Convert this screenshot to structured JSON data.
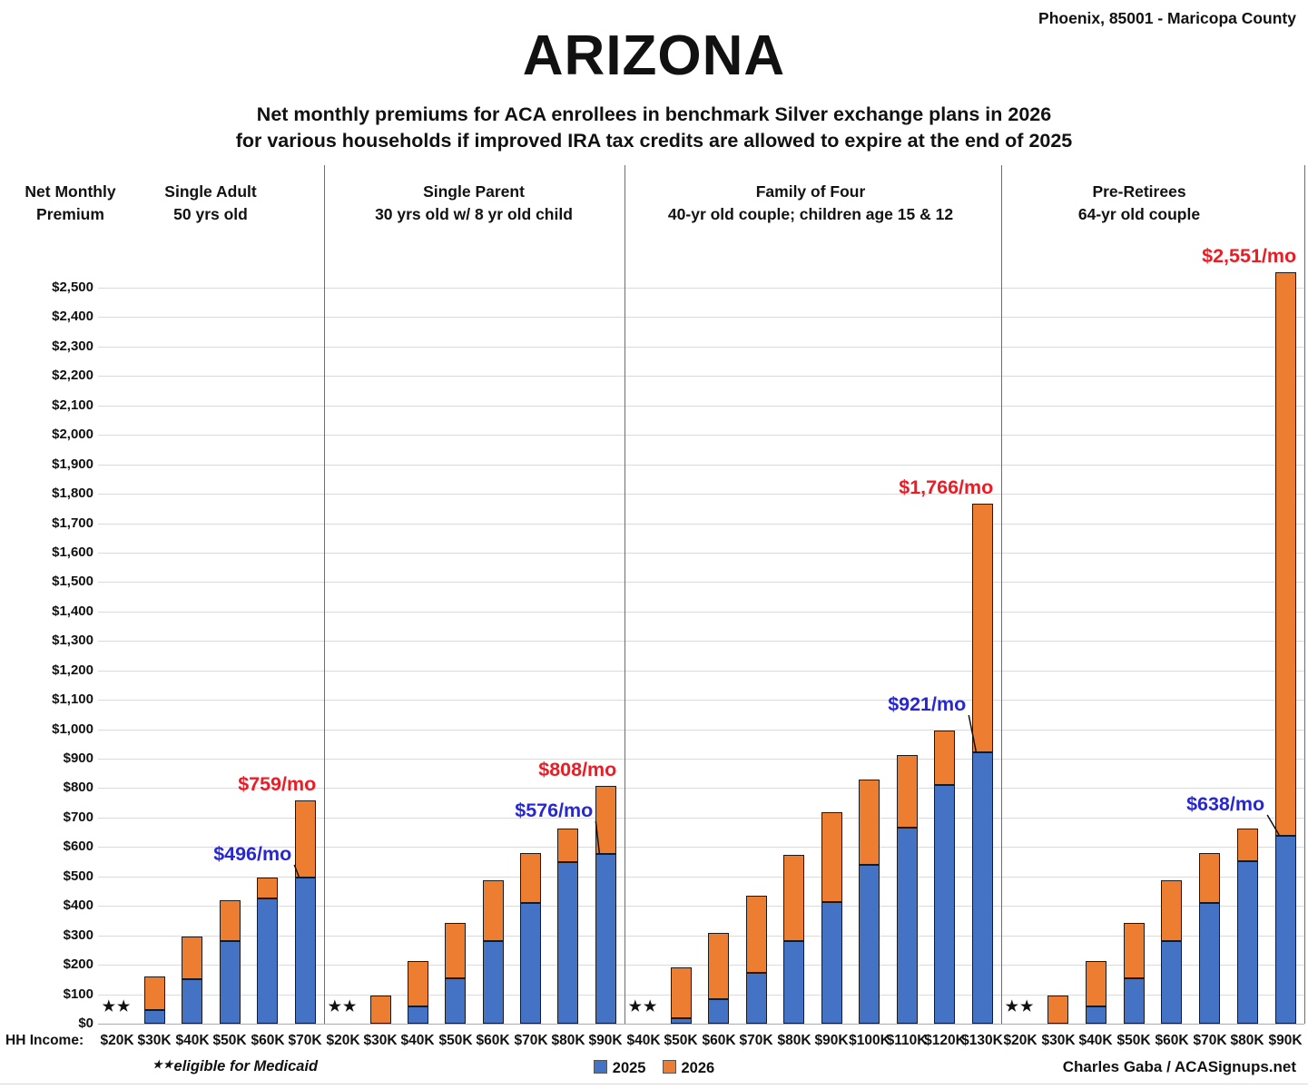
{
  "header": {
    "location": "Phoenix, 85001 - Maricopa County",
    "title": "ARIZONA",
    "subtitle_line1": "Net monthly premiums for ACA enrollees in benchmark Silver exchange plans in 2026",
    "subtitle_line2": "for various households if improved IRA tax credits are allowed to expire at the end of 2025"
  },
  "axis": {
    "y_label_line1": "Net Monthly",
    "y_label_line2": "Premium",
    "hh_income_label": "HH Income:",
    "y_min": 0,
    "y_max": 2500,
    "y_step": 100
  },
  "footer": {
    "medicaid_note_stars": "★★",
    "medicaid_note": "eligible for Medicaid",
    "credit": "Charles Gaba / ACASignups.net"
  },
  "colors": {
    "bar_2025": "#4472C4",
    "bar_2026": "#ED7D31",
    "annotation_2025": "#2727D4",
    "annotation_2026": "#ED1B24",
    "gridline": "#DADADA",
    "divider": "#6E6E6E",
    "text": "#111111"
  },
  "chart_data": {
    "type": "bar",
    "stacked": true,
    "title": "ARIZONA",
    "subtitle": "Net monthly premiums for ACA enrollees in benchmark Silver exchange plans in 2026 for various households if improved IRA tax credits are allowed to expire at the end of 2025",
    "ylabel": "Net Monthly Premium",
    "xlabel": "HH Income",
    "ylim": [
      0,
      2500
    ],
    "y_gridline_step": 100,
    "legend_position": "bottom-center",
    "medicaid_marker": "★★",
    "series_names": [
      "2025",
      "2026"
    ],
    "note": "premium_2026 is the stacked total bar height; blue segment = premium_2025, orange segment = increase to 2026 total",
    "groups": [
      {
        "title_line1": "Single Adult",
        "title_line2": "50 yrs old",
        "annotation_2025": "$496/mo",
        "annotation_2026": "$759/mo",
        "bars": [
          {
            "income": "$20K",
            "medicaid": true
          },
          {
            "income": "$30K",
            "premium_2025": 46,
            "premium_2026": 160
          },
          {
            "income": "$40K",
            "premium_2025": 151,
            "premium_2026": 296
          },
          {
            "income": "$50K",
            "premium_2025": 282,
            "premium_2026": 419
          },
          {
            "income": "$60K",
            "premium_2025": 424,
            "premium_2026": 497
          },
          {
            "income": "$70K",
            "premium_2025": 496,
            "premium_2026": 759
          }
        ]
      },
      {
        "title_line1": "Single Parent",
        "title_line2": "30 yrs old w/ 8 yr old child",
        "annotation_2025": "$576/mo",
        "annotation_2026": "$808/mo",
        "bars": [
          {
            "income": "$20K",
            "medicaid": true
          },
          {
            "income": "$30K",
            "premium_2025": 0,
            "premium_2026": 95
          },
          {
            "income": "$40K",
            "premium_2025": 58,
            "premium_2026": 213
          },
          {
            "income": "$50K",
            "premium_2025": 154,
            "premium_2026": 342
          },
          {
            "income": "$60K",
            "premium_2025": 281,
            "premium_2026": 487
          },
          {
            "income": "$70K",
            "premium_2025": 410,
            "premium_2026": 581
          },
          {
            "income": "$80K",
            "premium_2025": 549,
            "premium_2026": 662
          },
          {
            "income": "$90K",
            "premium_2025": 576,
            "premium_2026": 808
          }
        ]
      },
      {
        "title_line1": "Family of Four",
        "title_line2": "40-yr old couple; children age 15 & 12",
        "annotation_2025": "$921/mo",
        "annotation_2026": "$1,766/mo",
        "bars": [
          {
            "income": "$40K",
            "medicaid": true
          },
          {
            "income": "$50K",
            "premium_2025": 18,
            "premium_2026": 192
          },
          {
            "income": "$60K",
            "premium_2025": 83,
            "premium_2026": 309
          },
          {
            "income": "$70K",
            "premium_2025": 173,
            "premium_2026": 436
          },
          {
            "income": "$80K",
            "premium_2025": 280,
            "premium_2026": 572
          },
          {
            "income": "$90K",
            "premium_2025": 413,
            "premium_2026": 719
          },
          {
            "income": "$100K",
            "premium_2025": 538,
            "premium_2026": 829
          },
          {
            "income": "$110K",
            "premium_2025": 667,
            "premium_2026": 913
          },
          {
            "income": "$120K",
            "premium_2025": 811,
            "premium_2026": 997
          },
          {
            "income": "$130K",
            "premium_2025": 921,
            "premium_2026": 1766
          }
        ]
      },
      {
        "title_line1": "Pre-Retirees",
        "title_line2": "64-yr old couple",
        "annotation_2025": "$638/mo",
        "annotation_2026": "$2,551/mo",
        "bars": [
          {
            "income": "$20K",
            "medicaid": true
          },
          {
            "income": "$30K",
            "premium_2025": 0,
            "premium_2026": 95
          },
          {
            "income": "$40K",
            "premium_2025": 58,
            "premium_2026": 213
          },
          {
            "income": "$50K",
            "premium_2025": 154,
            "premium_2026": 342
          },
          {
            "income": "$60K",
            "premium_2025": 281,
            "premium_2026": 487
          },
          {
            "income": "$70K",
            "premium_2025": 410,
            "premium_2026": 581
          },
          {
            "income": "$80K",
            "premium_2025": 551,
            "premium_2026": 662
          },
          {
            "income": "$90K",
            "premium_2025": 638,
            "premium_2026": 2551
          }
        ]
      }
    ],
    "legend": [
      {
        "label": "2025",
        "color": "#4472C4"
      },
      {
        "label": "2026",
        "color": "#ED7D31"
      }
    ]
  }
}
